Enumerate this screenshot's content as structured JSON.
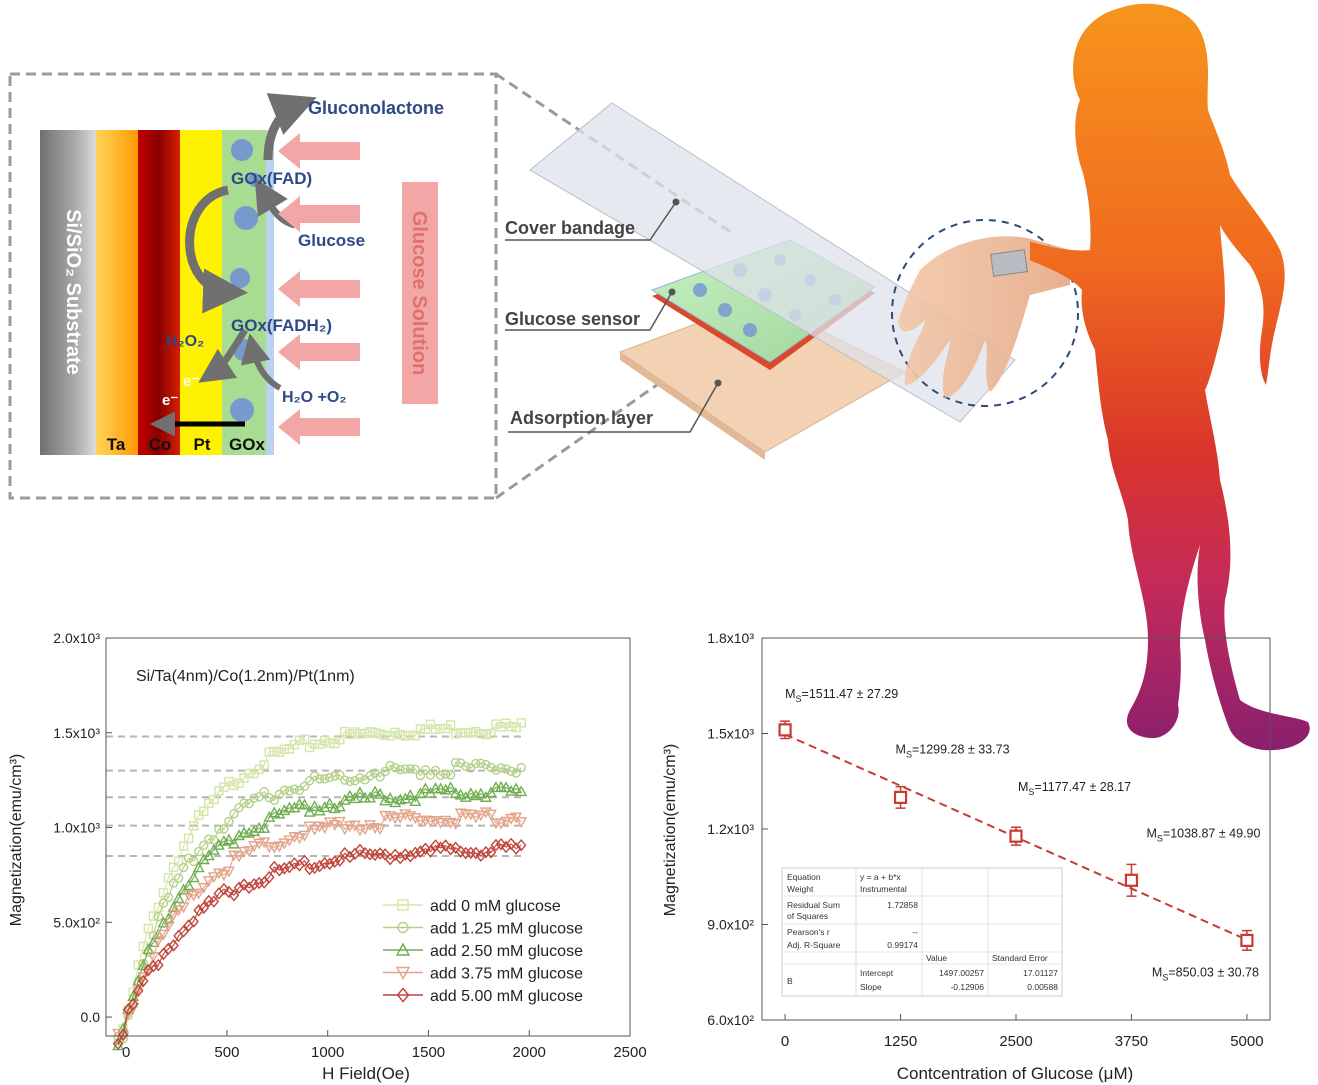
{
  "schematic": {
    "layers": [
      "Ta",
      "Co",
      "Pt",
      "GOx"
    ],
    "substrate_label": "Si/SiO₂ Substrate",
    "solution_label": "Glucose Solution",
    "species": {
      "gluconolactone": "Gluconolactone",
      "gox_fad": "GOx(FAD)",
      "glucose": "Glucose",
      "gox_fadh2": "GOx(FADH₂)",
      "h2o2": "H₂O₂",
      "h2o_o2": "H₂O +O₂",
      "electron1": "e⁻",
      "electron2": "e⁻"
    },
    "device_labels": {
      "cover": "Cover bandage",
      "sensor": "Glucose sensor",
      "adsorption": "Adsorption layer"
    }
  },
  "colors": {
    "series": [
      "#d4e6a8",
      "#b3d08a",
      "#6fae4f",
      "#e2a48a",
      "#c0443a"
    ],
    "fit_line": "#c83a32",
    "reference_line": "#b5b5b5",
    "gox_layer": "#8fd08a",
    "arrow_pink": "#f2a6a6"
  },
  "chart_data": [
    {
      "type": "scatter",
      "title": "Si/Ta(4nm)/Co(1.2nm)/Pt(1nm)",
      "xlabel": "H Field(Oe)",
      "ylabel": "Magnetization(emu/cm³)",
      "xlim": [
        -100,
        2500
      ],
      "ylim": [
        -100,
        2000
      ],
      "x_ticks": [
        "0",
        "500",
        "1000",
        "1500",
        "2000",
        "2500"
      ],
      "y_ticks": [
        "0.0",
        "5.0x10²",
        "1.0x10³",
        "1.5x10³",
        "2.0x10³"
      ],
      "legend_position": "lower-right",
      "reference_levels": [
        1480,
        1300,
        1160,
        1010,
        850
      ],
      "series": [
        {
          "name": "add 0 mM glucose",
          "marker": "square",
          "saturation": 1530,
          "rise": 320
        },
        {
          "name": "add 1.25 mM glucose",
          "marker": "circle",
          "saturation": 1320,
          "rise": 330
        },
        {
          "name": "add 2.50 mM glucose",
          "marker": "triangle-up",
          "saturation": 1190,
          "rise": 340
        },
        {
          "name": "add 3.75 mM glucose",
          "marker": "triangle-down",
          "saturation": 1060,
          "rise": 360
        },
        {
          "name": "add 5.00 mM glucose",
          "marker": "diamond",
          "saturation": 890,
          "rise": 380
        }
      ]
    },
    {
      "type": "scatter",
      "xlabel": "Contcentration of Glucose (μM)",
      "ylabel": "Magnetization(emu/cm³)",
      "xlim": [
        -250,
        5250
      ],
      "ylim": [
        600,
        1800
      ],
      "x_ticks": [
        "0",
        "1250",
        "2500",
        "3750",
        "5000"
      ],
      "y_ticks": [
        "6.0x10²",
        "9.0x10²",
        "1.2x10³",
        "1.5x10³",
        "1.8x10³"
      ],
      "x": [
        0,
        1250,
        2500,
        3750,
        5000
      ],
      "y": [
        1511.47,
        1299.28,
        1177.47,
        1038.87,
        850.03
      ],
      "errors": [
        27.29,
        33.73,
        28.17,
        49.9,
        30.78
      ],
      "annotations": [
        "M_S=1511.47 ± 27.29",
        "M_S=1299.28 ± 33.73",
        "M_S=1177.47 ± 28.17",
        "M_S=1038.87 ± 49.90",
        "M_S=850.03 ± 30.78"
      ],
      "fit": {
        "intercept": 1497.00257,
        "slope": -0.12906
      },
      "fit_table": {
        "equation_label": "Equation",
        "equation": "y = a + b*x",
        "weight_label": "Weight",
        "weight": "Instrumental",
        "rss_label1": "Residual Sum",
        "rss_label2": "of Squares",
        "rss": "1.72858",
        "pearson_label": "Pearson's r",
        "pearson": "--",
        "adjr_label": "Adj. R-Square",
        "adjr": "0.99174",
        "col_value": "Value",
        "col_error": "Standard Error",
        "row_name": "B",
        "intercept_label": "Intercept",
        "intercept_value": "1497.00257",
        "intercept_error": "17.01127",
        "slope_label": "Slope",
        "slope_value": "-0.12906",
        "slope_error": "0.00588"
      }
    }
  ]
}
